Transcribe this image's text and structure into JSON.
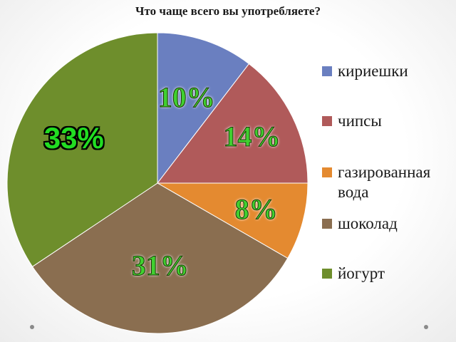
{
  "chart_data": {
    "type": "pie",
    "title": "Что чаще всего вы употребляете?",
    "categories": [
      "кириешки",
      "чипсы",
      "газированная вода",
      "шоколад",
      "йогурт"
    ],
    "values": [
      10,
      14,
      8,
      31,
      33
    ],
    "value_labels": [
      "10%",
      "14%",
      "8%",
      "31%",
      "33%"
    ],
    "colors": [
      "#6a7fc0",
      "#b05a5a",
      "#e48a30",
      "#8a6e50",
      "#6e8e2c"
    ],
    "legend_position": "right",
    "start_angle": "top",
    "direction": "clockwise"
  },
  "decorations": {
    "bullet_color": "#8a8a8a"
  }
}
